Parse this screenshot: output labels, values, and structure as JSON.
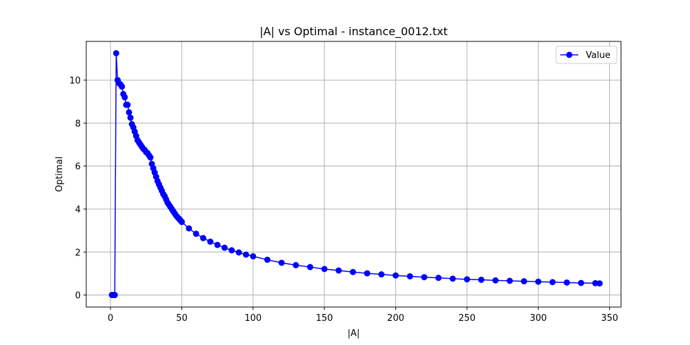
{
  "chart_data": {
    "type": "line",
    "title": "|A| vs Optimal - instance_0012.txt",
    "xlabel": "|A|",
    "ylabel": "Optimal",
    "xlim": [
      -17,
      358
    ],
    "ylim": [
      -0.56,
      11.8
    ],
    "xticks": [
      0,
      50,
      100,
      150,
      200,
      250,
      300,
      350
    ],
    "yticks": [
      0,
      2,
      4,
      6,
      8,
      10
    ],
    "grid": true,
    "legend_position": "top-right",
    "colors": {
      "series": "#0000ff",
      "grid": "#b0b0b0"
    },
    "series": [
      {
        "name": "Value",
        "marker": "circle",
        "x": [
          1,
          2,
          3,
          4,
          5,
          6,
          7,
          8,
          9,
          10,
          11,
          12,
          13,
          14,
          15,
          16,
          17,
          18,
          19,
          20,
          21,
          22,
          23,
          24,
          25,
          26,
          27,
          28,
          29,
          30,
          31,
          32,
          33,
          34,
          35,
          36,
          37,
          38,
          39,
          40,
          41,
          42,
          43,
          44,
          45,
          46,
          47,
          48,
          49,
          50,
          55,
          60,
          65,
          70,
          75,
          80,
          85,
          90,
          95,
          100,
          110,
          120,
          130,
          140,
          150,
          160,
          170,
          180,
          190,
          200,
          210,
          220,
          230,
          240,
          250,
          260,
          270,
          280,
          290,
          300,
          310,
          320,
          330,
          340,
          343
        ],
        "y": [
          0,
          0,
          0,
          11.25,
          10.0,
          9.85,
          9.8,
          9.7,
          9.35,
          9.2,
          8.85,
          8.85,
          8.5,
          8.25,
          7.95,
          7.8,
          7.6,
          7.4,
          7.2,
          7.1,
          7.0,
          6.9,
          6.8,
          6.75,
          6.65,
          6.6,
          6.5,
          6.4,
          6.1,
          5.9,
          5.7,
          5.5,
          5.3,
          5.15,
          5.0,
          4.85,
          4.7,
          4.6,
          4.45,
          4.3,
          4.2,
          4.1,
          4.0,
          3.9,
          3.8,
          3.7,
          3.62,
          3.55,
          3.48,
          3.4,
          3.1,
          2.85,
          2.65,
          2.48,
          2.33,
          2.2,
          2.08,
          1.98,
          1.88,
          1.8,
          1.64,
          1.5,
          1.39,
          1.3,
          1.21,
          1.14,
          1.07,
          1.01,
          0.96,
          0.91,
          0.87,
          0.83,
          0.8,
          0.76,
          0.73,
          0.71,
          0.68,
          0.66,
          0.64,
          0.62,
          0.6,
          0.58,
          0.56,
          0.55,
          0.54
        ]
      }
    ]
  }
}
